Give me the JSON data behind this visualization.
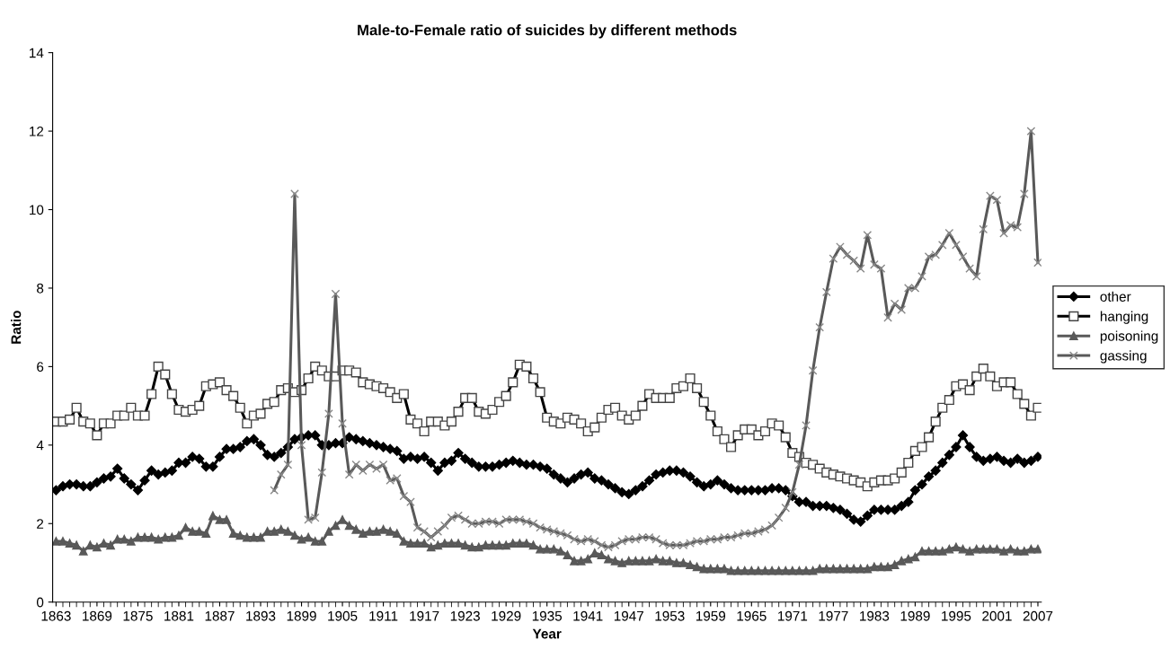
{
  "chart_data": {
    "type": "line",
    "title": "Male-to-Female ratio of suicides by different methods",
    "xlabel": "Year",
    "ylabel": "Ratio",
    "x": [
      1863,
      1864,
      1865,
      1866,
      1867,
      1868,
      1869,
      1870,
      1871,
      1872,
      1873,
      1874,
      1875,
      1876,
      1877,
      1878,
      1879,
      1880,
      1881,
      1882,
      1883,
      1884,
      1885,
      1886,
      1887,
      1888,
      1889,
      1890,
      1891,
      1892,
      1893,
      1894,
      1895,
      1896,
      1897,
      1898,
      1899,
      1900,
      1901,
      1902,
      1903,
      1904,
      1905,
      1906,
      1907,
      1908,
      1909,
      1910,
      1911,
      1912,
      1913,
      1914,
      1915,
      1916,
      1917,
      1918,
      1919,
      1920,
      1921,
      1922,
      1923,
      1924,
      1925,
      1926,
      1927,
      1928,
      1929,
      1930,
      1931,
      1932,
      1933,
      1934,
      1935,
      1936,
      1937,
      1938,
      1939,
      1940,
      1941,
      1942,
      1943,
      1944,
      1945,
      1946,
      1947,
      1948,
      1949,
      1950,
      1951,
      1952,
      1953,
      1954,
      1955,
      1956,
      1957,
      1958,
      1959,
      1960,
      1961,
      1962,
      1963,
      1964,
      1965,
      1966,
      1967,
      1968,
      1969,
      1970,
      1971,
      1972,
      1973,
      1974,
      1975,
      1976,
      1977,
      1978,
      1979,
      1980,
      1981,
      1982,
      1983,
      1984,
      1985,
      1986,
      1987,
      1988,
      1989,
      1990,
      1991,
      1992,
      1993,
      1994,
      1995,
      1996,
      1997,
      1998,
      1999,
      2000,
      2001,
      2002,
      2003,
      2004,
      2005,
      2006,
      2007
    ],
    "xlim": [
      1862.5,
      2007.5
    ],
    "xticks": [
      1863,
      1869,
      1875,
      1881,
      1887,
      1893,
      1899,
      1905,
      1911,
      1917,
      1923,
      1929,
      1935,
      1941,
      1947,
      1953,
      1959,
      1965,
      1971,
      1977,
      1983,
      1989,
      1995,
      2001,
      2007
    ],
    "ylim": [
      0,
      14
    ],
    "yticks": [
      0,
      2,
      4,
      6,
      8,
      10,
      12,
      14
    ],
    "grid": false,
    "legend": "right",
    "line_style": "solid",
    "series": [
      {
        "name": "other",
        "color": "#000000",
        "marker": "diamond",
        "values": [
          2.85,
          2.95,
          3.0,
          3.0,
          2.95,
          2.95,
          3.05,
          3.15,
          3.2,
          3.4,
          3.15,
          3.0,
          2.85,
          3.1,
          3.35,
          3.25,
          3.3,
          3.35,
          3.55,
          3.55,
          3.7,
          3.65,
          3.45,
          3.45,
          3.7,
          3.9,
          3.9,
          3.95,
          4.1,
          4.15,
          4.0,
          3.75,
          3.7,
          3.8,
          3.95,
          4.15,
          4.2,
          4.25,
          4.25,
          4.0,
          4.0,
          4.05,
          4.05,
          4.2,
          4.15,
          4.1,
          4.05,
          4.0,
          3.95,
          3.9,
          3.85,
          3.65,
          3.7,
          3.65,
          3.7,
          3.55,
          3.35,
          3.55,
          3.6,
          3.8,
          3.65,
          3.55,
          3.45,
          3.45,
          3.45,
          3.5,
          3.55,
          3.6,
          3.55,
          3.5,
          3.5,
          3.45,
          3.4,
          3.25,
          3.15,
          3.05,
          3.15,
          3.25,
          3.3,
          3.15,
          3.1,
          3.0,
          2.9,
          2.8,
          2.75,
          2.85,
          2.95,
          3.1,
          3.25,
          3.3,
          3.35,
          3.35,
          3.3,
          3.2,
          3.05,
          2.95,
          3.0,
          3.1,
          3.0,
          2.9,
          2.85,
          2.85,
          2.85,
          2.85,
          2.85,
          2.9,
          2.9,
          2.85,
          2.7,
          2.55,
          2.55,
          2.45,
          2.45,
          2.45,
          2.4,
          2.35,
          2.25,
          2.1,
          2.05,
          2.2,
          2.35,
          2.35,
          2.35,
          2.35,
          2.45,
          2.55,
          2.85,
          3.0,
          3.2,
          3.35,
          3.55,
          3.75,
          3.95,
          4.25,
          3.95,
          3.7,
          3.6,
          3.65,
          3.7,
          3.6,
          3.55,
          3.65,
          3.55,
          3.6,
          3.7
        ]
      },
      {
        "name": "hanging",
        "color": "#000000",
        "marker": "square",
        "values": [
          4.6,
          4.6,
          4.65,
          4.95,
          4.6,
          4.55,
          4.25,
          4.55,
          4.55,
          4.75,
          4.75,
          4.95,
          4.75,
          4.75,
          5.3,
          6.0,
          5.8,
          5.3,
          4.9,
          4.85,
          4.9,
          5.0,
          5.5,
          5.55,
          5.6,
          5.4,
          5.25,
          4.95,
          4.55,
          4.75,
          4.8,
          5.05,
          5.1,
          5.4,
          5.45,
          5.35,
          5.4,
          5.7,
          6.0,
          5.9,
          5.75,
          5.75,
          5.9,
          5.9,
          5.85,
          5.6,
          5.55,
          5.5,
          5.45,
          5.35,
          5.2,
          5.3,
          4.65,
          4.55,
          4.35,
          4.6,
          4.6,
          4.5,
          4.6,
          4.85,
          5.2,
          5.2,
          4.85,
          4.8,
          4.9,
          5.1,
          5.25,
          5.6,
          6.05,
          6.0,
          5.7,
          5.35,
          4.7,
          4.6,
          4.55,
          4.7,
          4.65,
          4.55,
          4.35,
          4.45,
          4.7,
          4.9,
          4.95,
          4.75,
          4.65,
          4.75,
          5.0,
          5.3,
          5.2,
          5.2,
          5.2,
          5.45,
          5.5,
          5.7,
          5.45,
          5.1,
          4.75,
          4.35,
          4.15,
          3.95,
          4.25,
          4.4,
          4.4,
          4.25,
          4.35,
          4.55,
          4.5,
          4.2,
          3.8,
          3.7,
          3.55,
          3.5,
          3.4,
          3.3,
          3.25,
          3.2,
          3.15,
          3.1,
          3.05,
          2.95,
          3.05,
          3.1,
          3.1,
          3.15,
          3.3,
          3.55,
          3.85,
          3.95,
          4.2,
          4.6,
          4.95,
          5.15,
          5.5,
          5.55,
          5.4,
          5.75,
          5.95,
          5.75,
          5.5,
          5.6,
          5.6,
          5.3,
          5.05,
          4.75,
          4.95
        ]
      },
      {
        "name": "poisoning",
        "color": "#595959",
        "marker": "triangle",
        "values": [
          1.55,
          1.55,
          1.5,
          1.45,
          1.3,
          1.45,
          1.4,
          1.5,
          1.45,
          1.6,
          1.6,
          1.55,
          1.65,
          1.65,
          1.65,
          1.6,
          1.65,
          1.65,
          1.7,
          1.9,
          1.8,
          1.8,
          1.75,
          2.2,
          2.1,
          2.1,
          1.75,
          1.7,
          1.65,
          1.65,
          1.65,
          1.8,
          1.8,
          1.85,
          1.8,
          1.7,
          1.6,
          1.65,
          1.55,
          1.55,
          1.8,
          1.95,
          2.1,
          1.95,
          1.85,
          1.75,
          1.8,
          1.8,
          1.85,
          1.8,
          1.75,
          1.55,
          1.5,
          1.5,
          1.5,
          1.4,
          1.45,
          1.5,
          1.5,
          1.5,
          1.45,
          1.4,
          1.4,
          1.45,
          1.45,
          1.45,
          1.45,
          1.5,
          1.5,
          1.5,
          1.45,
          1.35,
          1.35,
          1.35,
          1.3,
          1.2,
          1.05,
          1.05,
          1.1,
          1.25,
          1.2,
          1.1,
          1.05,
          1.0,
          1.05,
          1.05,
          1.05,
          1.05,
          1.1,
          1.05,
          1.05,
          1.0,
          1.0,
          0.95,
          0.9,
          0.85,
          0.85,
          0.85,
          0.85,
          0.8,
          0.8,
          0.8,
          0.8,
          0.8,
          0.8,
          0.8,
          0.8,
          0.8,
          0.8,
          0.8,
          0.8,
          0.8,
          0.85,
          0.85,
          0.85,
          0.85,
          0.85,
          0.85,
          0.85,
          0.85,
          0.9,
          0.9,
          0.9,
          0.95,
          1.05,
          1.1,
          1.15,
          1.3,
          1.3,
          1.3,
          1.3,
          1.35,
          1.4,
          1.35,
          1.3,
          1.35,
          1.35,
          1.35,
          1.35,
          1.3,
          1.35,
          1.3,
          1.3,
          1.35,
          1.35
        ]
      },
      {
        "name": "gassing",
        "color": "#595959",
        "marker": "cross",
        "values": [
          null,
          null,
          null,
          null,
          null,
          null,
          null,
          null,
          null,
          null,
          null,
          null,
          null,
          null,
          null,
          null,
          null,
          null,
          null,
          null,
          null,
          null,
          null,
          null,
          null,
          null,
          null,
          null,
          null,
          null,
          null,
          null,
          2.85,
          3.25,
          3.5,
          10.4,
          4.0,
          2.1,
          2.15,
          3.3,
          4.8,
          7.85,
          4.55,
          3.25,
          3.5,
          3.35,
          3.5,
          3.4,
          3.5,
          3.1,
          3.15,
          2.7,
          2.55,
          1.9,
          1.8,
          1.65,
          1.8,
          1.95,
          2.15,
          2.2,
          2.1,
          2.0,
          2.0,
          2.05,
          2.05,
          2.0,
          2.1,
          2.1,
          2.1,
          2.05,
          2.0,
          1.9,
          1.85,
          1.8,
          1.75,
          1.7,
          1.6,
          1.55,
          1.6,
          1.55,
          1.45,
          1.4,
          1.45,
          1.55,
          1.6,
          1.6,
          1.65,
          1.65,
          1.6,
          1.5,
          1.45,
          1.45,
          1.45,
          1.5,
          1.55,
          1.55,
          1.6,
          1.6,
          1.65,
          1.65,
          1.7,
          1.75,
          1.75,
          1.8,
          1.85,
          1.95,
          2.15,
          2.4,
          2.8,
          3.5,
          4.5,
          5.9,
          7.0,
          7.9,
          8.75,
          9.05,
          8.85,
          8.7,
          8.5,
          9.35,
          8.6,
          8.5,
          7.25,
          7.6,
          7.45,
          8.0,
          8.0,
          8.3,
          8.8,
          8.85,
          9.1,
          9.4,
          9.1,
          8.8,
          8.5,
          8.3,
          9.5,
          10.35,
          10.25,
          9.4,
          9.6,
          9.55,
          10.4,
          12.0,
          8.65
        ]
      }
    ]
  }
}
